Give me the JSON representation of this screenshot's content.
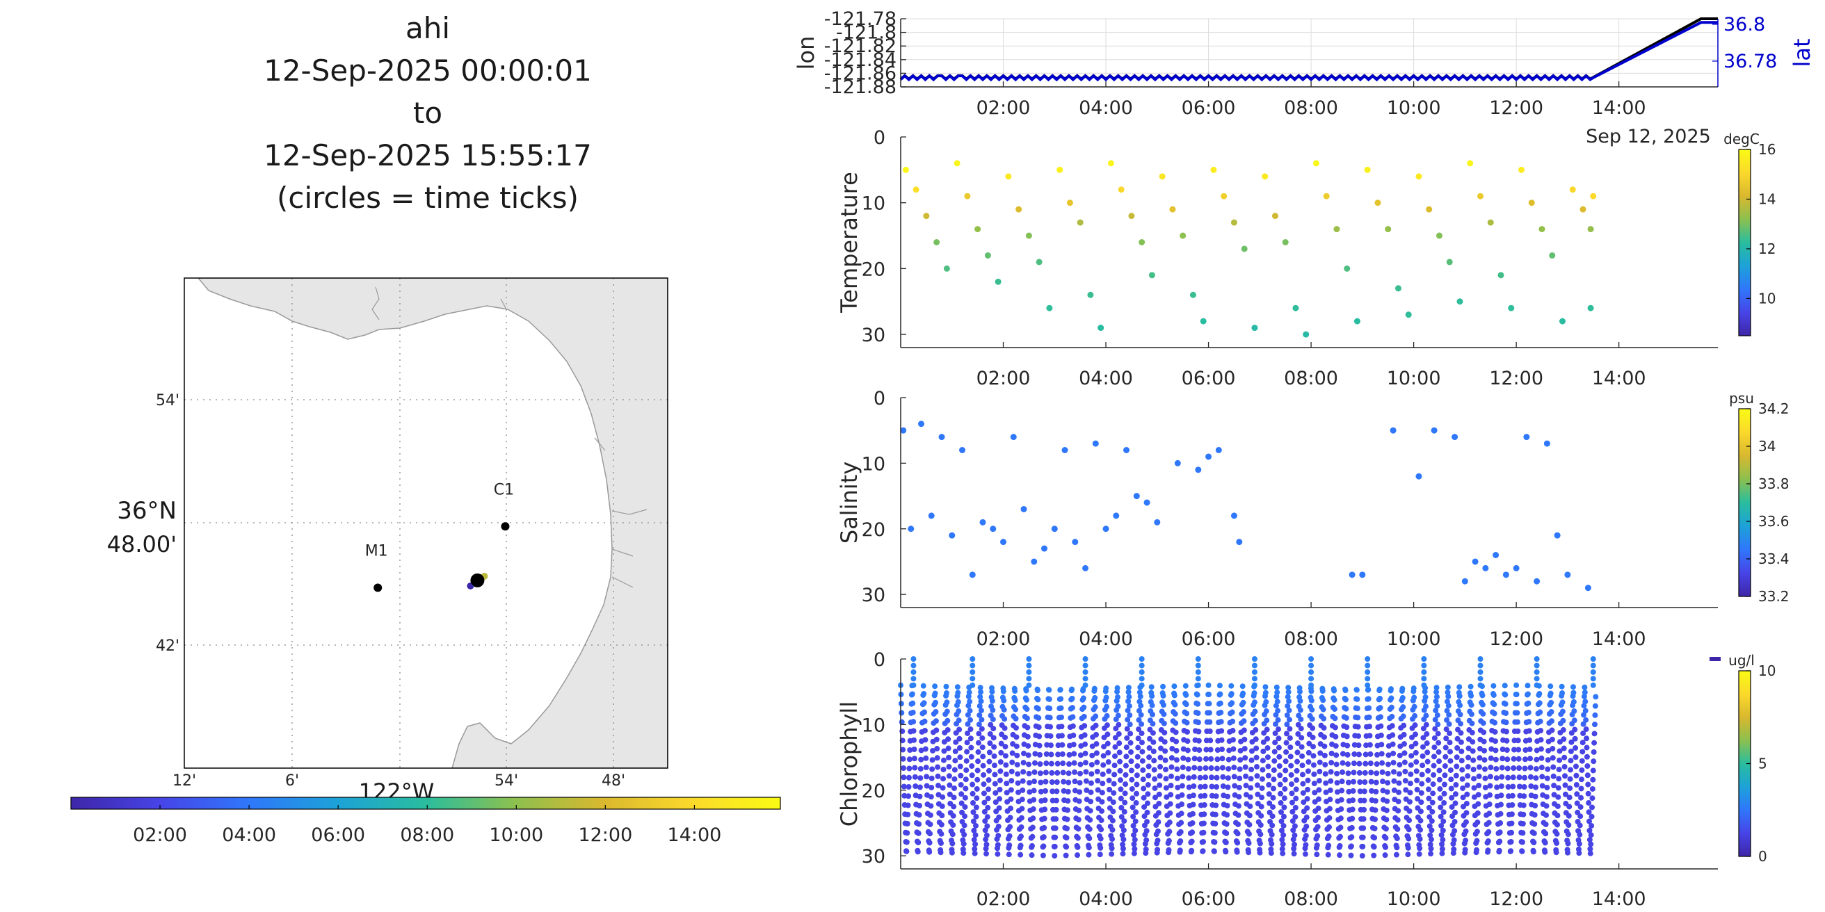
{
  "title": {
    "lines": [
      "ahi",
      "12-Sep-2025 00:00:01",
      "to",
      "12-Sep-2025 15:55:17",
      "(circles = time ticks)"
    ]
  },
  "colors": {
    "parula": [
      "#3e26a8",
      "#4744e7",
      "#2f77fb",
      "#1da2d8",
      "#2abd9e",
      "#8cc04f",
      "#d9b82f",
      "#fbd92b",
      "#f9fb15"
    ],
    "land": "#e6e6e6",
    "lat_line": "#0000cc",
    "lon_line": "#000000"
  },
  "map": {
    "lat_labels": [
      "54'",
      "42'"
    ],
    "lat_main_label": [
      "36°N",
      "48.00'"
    ],
    "lon_labels": [
      "12'",
      "6'",
      "54'",
      "48'"
    ],
    "lon_main_label": "122°W",
    "stations": [
      {
        "name": "M1",
        "lon": -122.02,
        "lat": 36.747
      },
      {
        "name": "C1",
        "lon": -121.901,
        "lat": 36.797
      }
    ],
    "track_point": {
      "lon": -121.927,
      "lat": 36.753
    }
  },
  "time_colorbar": {
    "ticks": [
      "02:00",
      "04:00",
      "06:00",
      "08:00",
      "10:00",
      "12:00",
      "14:00"
    ]
  },
  "chart_data": [
    {
      "type": "line",
      "name": "position",
      "x_ticks": [
        "02:00",
        "04:00",
        "06:00",
        "08:00",
        "10:00",
        "12:00",
        "14:00"
      ],
      "date_label": "Sep 12, 2025",
      "left_axis": {
        "label": "lon",
        "ticks": [
          "-121.78",
          "-121.8",
          "-121.82",
          "-121.84",
          "-121.86",
          "-121.88"
        ],
        "ylim": [
          -121.88,
          -121.78
        ]
      },
      "right_axis": {
        "label": "lat",
        "ticks": [
          "36.8",
          "36.78"
        ],
        "ylim": [
          36.766,
          36.803
        ]
      },
      "series": [
        {
          "name": "lon",
          "color": "#000000",
          "x": [
            0,
            2,
            4,
            6,
            8,
            10,
            12,
            13.5,
            15.6,
            15.93
          ],
          "y": [
            -121.866,
            -121.866,
            -121.866,
            -121.866,
            -121.866,
            -121.866,
            -121.866,
            -121.866,
            -121.78,
            -121.78
          ]
        },
        {
          "name": "lat",
          "color": "#0000cc",
          "x": [
            0,
            2,
            4,
            6,
            8,
            10,
            12,
            13.5,
            15.6,
            15.93
          ],
          "y": [
            36.771,
            36.771,
            36.771,
            36.771,
            36.771,
            36.771,
            36.771,
            36.771,
            36.801,
            36.801
          ]
        }
      ]
    },
    {
      "type": "scatter",
      "name": "temperature",
      "ylabel": "Temperature",
      "y_ticks": [
        "0",
        "10",
        "20",
        "30"
      ],
      "ylim": [
        0,
        32
      ],
      "x_ticks": [
        "02:00",
        "04:00",
        "06:00",
        "08:00",
        "10:00",
        "12:00",
        "14:00"
      ],
      "colorbar": {
        "unit": "degC",
        "ticks": [
          "16",
          "14",
          "12",
          "10"
        ],
        "clim": [
          8.5,
          16
        ]
      },
      "points": [
        [
          0.1,
          5,
          15.9
        ],
        [
          0.3,
          8,
          15.2
        ],
        [
          0.5,
          12,
          14
        ],
        [
          0.7,
          16,
          13
        ],
        [
          0.9,
          20,
          12.6
        ],
        [
          1.1,
          4,
          15.8
        ],
        [
          1.3,
          9,
          14.6
        ],
        [
          1.5,
          14,
          13.3
        ],
        [
          1.7,
          18,
          12.8
        ],
        [
          1.9,
          22,
          12.4
        ],
        [
          2.1,
          6,
          15.5
        ],
        [
          2.3,
          11,
          14.2
        ],
        [
          2.5,
          15,
          13.1
        ],
        [
          2.7,
          19,
          12.6
        ],
        [
          2.9,
          26,
          12.3
        ],
        [
          3.1,
          5,
          15.7
        ],
        [
          3.3,
          10,
          14.5
        ],
        [
          3.5,
          13,
          13.6
        ],
        [
          3.7,
          24,
          12.4
        ],
        [
          3.9,
          29,
          12.2
        ],
        [
          4.1,
          4,
          15.8
        ],
        [
          4.3,
          8,
          15
        ],
        [
          4.5,
          12,
          13.9
        ],
        [
          4.7,
          16,
          13.1
        ],
        [
          4.9,
          21,
          12.5
        ],
        [
          5.1,
          6,
          15.4
        ],
        [
          5.3,
          11,
          14.4
        ],
        [
          5.5,
          15,
          13.2
        ],
        [
          5.7,
          24,
          12.4
        ],
        [
          5.9,
          28,
          12.2
        ],
        [
          6.1,
          5,
          15.6
        ],
        [
          6.3,
          9,
          14.8
        ],
        [
          6.5,
          13,
          13.7
        ],
        [
          6.7,
          17,
          12.9
        ],
        [
          6.9,
          29,
          12.1
        ],
        [
          7.1,
          6,
          15.5
        ],
        [
          7.3,
          12,
          14
        ],
        [
          7.5,
          16,
          13
        ],
        [
          7.7,
          26,
          12.3
        ],
        [
          7.9,
          30,
          12.1
        ],
        [
          8.1,
          4,
          15.9
        ],
        [
          8.3,
          9,
          14.7
        ],
        [
          8.5,
          14,
          13.4
        ],
        [
          8.7,
          20,
          12.6
        ],
        [
          8.9,
          28,
          12.2
        ],
        [
          9.1,
          5,
          15.7
        ],
        [
          9.3,
          10,
          14.4
        ],
        [
          9.5,
          14,
          13.3
        ],
        [
          9.7,
          23,
          12.4
        ],
        [
          9.9,
          27,
          12.3
        ],
        [
          10.1,
          6,
          15.5
        ],
        [
          10.3,
          11,
          14.2
        ],
        [
          10.5,
          15,
          13.1
        ],
        [
          10.7,
          19,
          12.7
        ],
        [
          10.9,
          25,
          12.3
        ],
        [
          11.1,
          4,
          15.8
        ],
        [
          11.3,
          9,
          14.6
        ],
        [
          11.5,
          13,
          13.6
        ],
        [
          11.7,
          21,
          12.5
        ],
        [
          11.9,
          26,
          12.3
        ],
        [
          12.1,
          5,
          15.6
        ],
        [
          12.3,
          10,
          14.3
        ],
        [
          12.5,
          14,
          13.3
        ],
        [
          12.7,
          18,
          12.8
        ],
        [
          12.9,
          28,
          12.2
        ],
        [
          13.1,
          8,
          15
        ],
        [
          13.3,
          11,
          14.2
        ],
        [
          13.45,
          14,
          13.3
        ],
        [
          13.45,
          26,
          12.3
        ],
        [
          13.5,
          9,
          15.1
        ]
      ]
    },
    {
      "type": "scatter",
      "name": "salinity",
      "ylabel": "Salinity",
      "y_ticks": [
        "0",
        "10",
        "20",
        "30"
      ],
      "ylim": [
        0,
        32
      ],
      "x_ticks": [
        "02:00",
        "04:00",
        "06:00",
        "08:00",
        "10:00",
        "12:00",
        "14:00"
      ],
      "colorbar": {
        "unit": "psu",
        "ticks": [
          "34.2",
          "34",
          "33.8",
          "33.6",
          "33.4",
          "33.2"
        ],
        "clim": [
          33.2,
          34.2
        ]
      },
      "points": [
        [
          0.05,
          5,
          33.45
        ],
        [
          0.2,
          20,
          33.45
        ],
        [
          0.4,
          4,
          33.45
        ],
        [
          0.6,
          18,
          33.45
        ],
        [
          0.8,
          6,
          33.45
        ],
        [
          1.0,
          21,
          33.45
        ],
        [
          1.2,
          8,
          33.45
        ],
        [
          1.4,
          27,
          33.45
        ],
        [
          1.6,
          19,
          33.45
        ],
        [
          1.8,
          20,
          33.45
        ],
        [
          2.0,
          22,
          33.45
        ],
        [
          2.2,
          6,
          33.45
        ],
        [
          2.4,
          17,
          33.45
        ],
        [
          2.6,
          25,
          33.45
        ],
        [
          2.8,
          23,
          33.45
        ],
        [
          3.0,
          20,
          33.45
        ],
        [
          3.2,
          8,
          33.45
        ],
        [
          3.4,
          22,
          33.45
        ],
        [
          3.6,
          26,
          33.45
        ],
        [
          3.8,
          7,
          33.45
        ],
        [
          4.0,
          20,
          33.45
        ],
        [
          4.2,
          18,
          33.45
        ],
        [
          4.4,
          8,
          33.45
        ],
        [
          4.6,
          15,
          33.45
        ],
        [
          4.8,
          16,
          33.45
        ],
        [
          5.0,
          19,
          33.45
        ],
        [
          5.4,
          10,
          33.45
        ],
        [
          5.8,
          11,
          33.45
        ],
        [
          6.0,
          9,
          33.45
        ],
        [
          6.2,
          8,
          33.45
        ],
        [
          6.5,
          18,
          33.45
        ],
        [
          6.6,
          22,
          33.45
        ],
        [
          8.8,
          27,
          33.45
        ],
        [
          9.0,
          27,
          33.45
        ],
        [
          9.6,
          5,
          33.45
        ],
        [
          10.1,
          12,
          33.45
        ],
        [
          10.4,
          5,
          33.45
        ],
        [
          10.8,
          6,
          33.45
        ],
        [
          11.0,
          28,
          33.45
        ],
        [
          11.2,
          25,
          33.45
        ],
        [
          11.4,
          26,
          33.45
        ],
        [
          11.6,
          24,
          33.45
        ],
        [
          11.8,
          27,
          33.45
        ],
        [
          12.0,
          26,
          33.45
        ],
        [
          12.2,
          6,
          33.45
        ],
        [
          12.4,
          28,
          33.45
        ],
        [
          12.6,
          7,
          33.45
        ],
        [
          12.8,
          21,
          33.45
        ],
        [
          13.0,
          27,
          33.45
        ],
        [
          13.4,
          29,
          33.45
        ]
      ]
    },
    {
      "type": "scatter",
      "name": "chlorophyll",
      "ylabel": "Chlorophyll",
      "y_ticks": [
        "0",
        "10",
        "20",
        "30"
      ],
      "ylim": [
        0,
        32
      ],
      "x_ticks": [
        "02:00",
        "04:00",
        "06:00",
        "08:00",
        "10:00",
        "12:00",
        "14:00"
      ],
      "colorbar": {
        "unit": "ug/l",
        "ticks": [
          "10",
          "5",
          "0"
        ],
        "clim": [
          0,
          10
        ]
      },
      "profile_depth": [
        4,
        30
      ],
      "surface_times": [
        0.25,
        1.4,
        2.5,
        3.6,
        4.7,
        5.8,
        6.9,
        8.0,
        9.1,
        10.2,
        11.3,
        12.4,
        13.5
      ],
      "data_end_hour": 13.55
    }
  ]
}
